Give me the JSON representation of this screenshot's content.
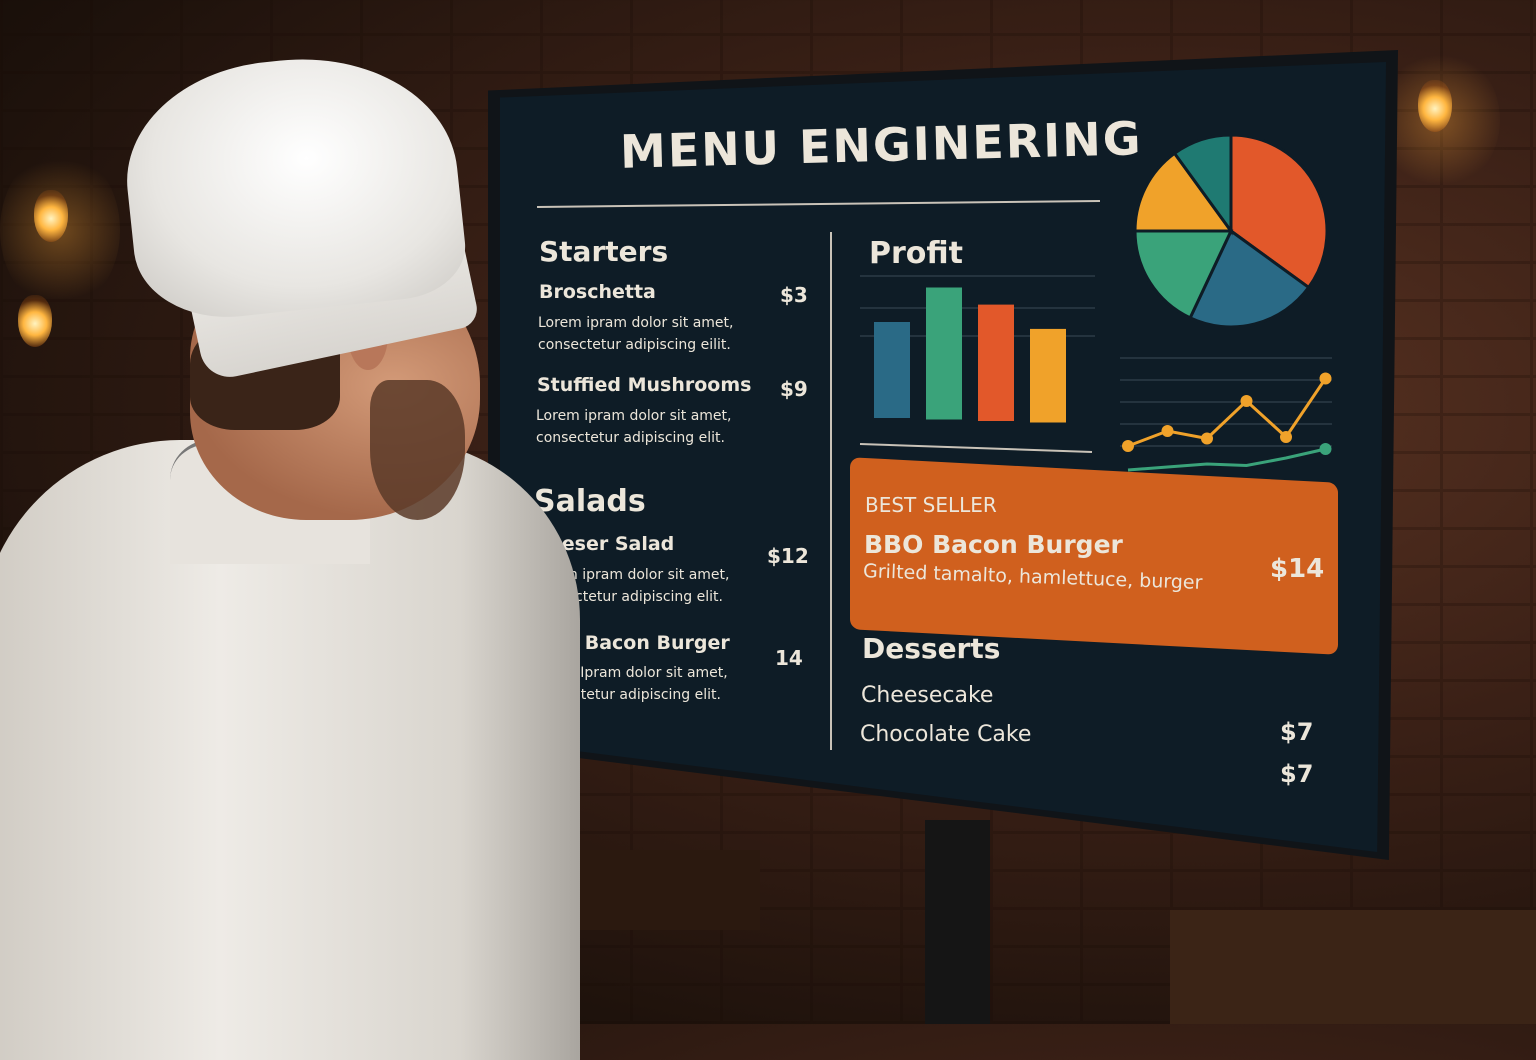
{
  "screen": {
    "title": "MENU ENGINERING",
    "sections": [
      {
        "heading": "Starters",
        "items": [
          {
            "name": "Broschetta",
            "price": "$3",
            "desc": "Lorem ipram dolor sit amet, consectetur adipiscing eilit."
          },
          {
            "name": "Stuffied Mushrooms",
            "price": "$9",
            "desc": "Lorem ipram dolor sit amet, consectetur adipiscing elit."
          }
        ]
      },
      {
        "heading": "Salads",
        "items": [
          {
            "name": "Caeser Salad",
            "price": "$12",
            "desc": "Lorem ipram dolor sit amet, consectetur adipiscing elit."
          },
          {
            "name": "BBQ Bacon Burger",
            "price": "14",
            "desc": "Lorem Ipram dolor sit amet, consectetur adipiscing elit."
          }
        ]
      }
    ],
    "profit": {
      "heading": "Profit"
    },
    "best_seller": {
      "label": "BEST SELLER",
      "name": "BBO Bacon Burger",
      "desc": "Grilted tamalto, hamlettuce, burger",
      "price": "$14",
      "color": "#d0601e"
    },
    "desserts": {
      "heading": "Desserts",
      "items": [
        {
          "name": "Cheesecake",
          "price": "$7"
        },
        {
          "name": "Chocolate Cake",
          "price": "$7"
        }
      ]
    }
  },
  "chart_data": [
    {
      "type": "bar",
      "values": [
        80,
        110,
        97,
        78
      ],
      "colors": [
        "#2a6a86",
        "#3aa37a",
        "#e2582a",
        "#f0a22a"
      ]
    },
    {
      "type": "pie",
      "values": [
        35,
        22,
        18,
        15,
        10
      ],
      "colors": [
        "#e2582a",
        "#2a6a86",
        "#3aa37a",
        "#f0a22a",
        "#1f7a72"
      ]
    },
    {
      "type": "line",
      "series": [
        {
          "values": [
            2,
            3,
            2.5,
            5,
            2.6,
            6.5
          ],
          "color": "#f0a22a"
        },
        {
          "values": [
            0.4,
            0.6,
            0.8,
            0.7,
            1.2,
            1.8
          ],
          "color": "#3aa37a"
        }
      ]
    }
  ]
}
